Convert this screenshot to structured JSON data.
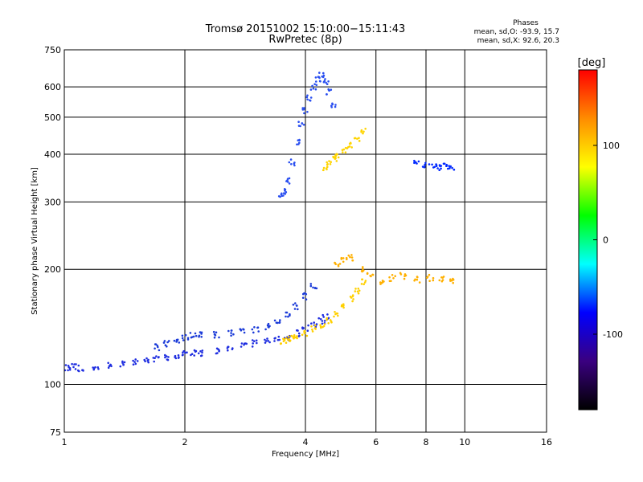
{
  "chart_data": {
    "type": "scatter",
    "title": "Tromsø 20151002 15:10:00−15:11:43",
    "subtitle": "RwPretec (8p)",
    "xlabel": "Frequency [MHz]",
    "ylabel": "Stationary phase Virtual Height [km]",
    "xscale": "log",
    "yscale": "log",
    "xlim": [
      1,
      16
    ],
    "ylim": [
      75,
      750
    ],
    "x_ticks": [
      1,
      2,
      4,
      6,
      8,
      10,
      16
    ],
    "y_ticks": [
      75,
      100,
      200,
      300,
      400,
      500,
      600,
      750
    ],
    "x_gridlines": [
      2,
      4,
      6,
      8,
      10
    ],
    "y_gridlines": [
      100,
      200,
      300,
      400,
      500,
      600
    ],
    "grid": true,
    "stats": {
      "header": "Phases",
      "o_line": "mean, sd,O: -93.9, 15.7",
      "x_line": "mean, sd,X:  92.6, 20.3"
    },
    "colorbar": {
      "label": "[deg]",
      "range": [
        -180,
        180
      ],
      "ticks": [
        100,
        0,
        -100
      ],
      "colors": [
        "#ff0000",
        "#ff8c00",
        "#ffff00",
        "#00ff00",
        "#00ffff",
        "#0000ff",
        "#3a0080",
        "#000000"
      ]
    },
    "series": [
      {
        "trace": "lower-o",
        "phase_deg": -108,
        "color": "#1f2ee0",
        "x": [
          1.02,
          1.05,
          1.1,
          1.2,
          1.3,
          1.4,
          1.5,
          1.6,
          1.7,
          1.8,
          1.9,
          2.0,
          2.1,
          2.2,
          2.4,
          2.6,
          2.8,
          3.0,
          3.2,
          3.4,
          3.6,
          3.8,
          4.0,
          4.2,
          4.4,
          4.5
        ],
        "y": [
          111,
          111,
          110,
          110,
          112,
          113,
          114,
          115,
          117,
          118,
          119,
          120,
          121,
          121,
          122,
          124,
          126,
          128,
          130,
          131,
          133,
          136,
          140,
          143,
          147,
          150
        ]
      },
      {
        "trace": "upper-o",
        "phase_deg": -110,
        "color": "#1b3bd8",
        "x": [
          1.7,
          1.8,
          1.9,
          2.0,
          2.1,
          2.2,
          2.4,
          2.6,
          2.8,
          3.0,
          3.2,
          3.4,
          3.6,
          3.8,
          4.0,
          4.2
        ],
        "y": [
          125,
          128,
          131,
          133,
          134,
          135,
          135,
          136,
          137,
          139,
          142,
          146,
          152,
          160,
          170,
          180
        ]
      },
      {
        "trace": "lower-x",
        "phase_deg": 95,
        "color": "#ffd000",
        "x": [
          3.5,
          3.6,
          3.7,
          3.8,
          4.0,
          4.2,
          4.4,
          4.6,
          4.8,
          5.0,
          5.2,
          5.4,
          5.6
        ],
        "y": [
          130,
          131,
          132,
          133,
          136,
          140,
          143,
          147,
          152,
          160,
          168,
          175,
          185
        ]
      },
      {
        "trace": "f-region-o",
        "phase_deg": -100,
        "color": "#2a4ff0",
        "x": [
          3.5,
          3.55,
          3.6,
          3.7,
          3.8,
          3.9,
          4.0,
          4.1,
          4.2,
          4.3,
          4.4,
          4.5,
          4.6,
          4.7
        ],
        "y": [
          310,
          320,
          340,
          380,
          430,
          480,
          520,
          560,
          600,
          630,
          645,
          620,
          580,
          540
        ]
      },
      {
        "trace": "f-region-x",
        "phase_deg": 98,
        "color": "#ffd400",
        "x": [
          4.5,
          4.6,
          4.7,
          4.8,
          5.0,
          5.2,
          5.4,
          5.6
        ],
        "y": [
          370,
          380,
          390,
          400,
          410,
          425,
          440,
          460
        ]
      },
      {
        "trace": "scatter-mid",
        "phase_deg": 110,
        "color": "#ffb000",
        "x": [
          4.8,
          5.0,
          5.2,
          5.5,
          5.8,
          6.2,
          6.6,
          7.0,
          7.6,
          8.2,
          8.8,
          9.2
        ],
        "y": [
          205,
          210,
          215,
          200,
          195,
          185,
          190,
          192,
          188,
          190,
          188,
          186
        ]
      },
      {
        "trace": "scatter-high",
        "phase_deg": -95,
        "color": "#0028ff",
        "x": [
          7.6,
          8.0,
          8.4,
          8.7,
          9.0,
          9.3
        ],
        "y": [
          380,
          375,
          372,
          370,
          372,
          368
        ]
      }
    ]
  }
}
